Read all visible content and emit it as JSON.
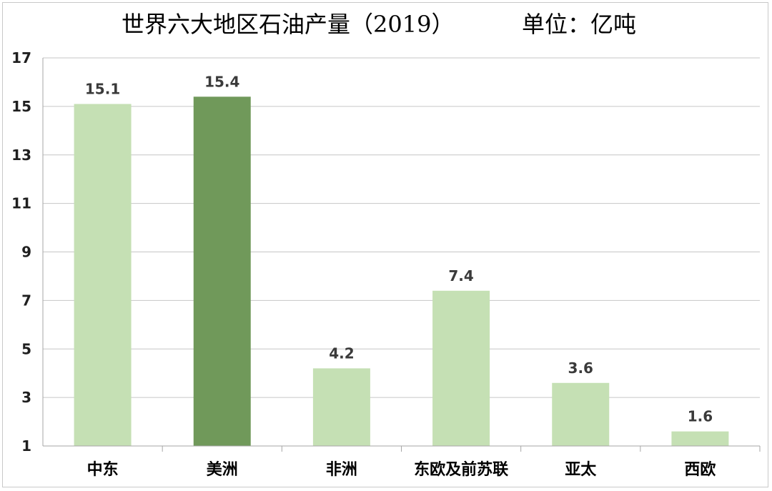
{
  "chart_data": {
    "type": "bar",
    "title": "世界六大地区石油产量（2019）",
    "unit": "单位：亿吨",
    "categories": [
      "中东",
      "美洲",
      "非洲",
      "东欧及前苏联",
      "亚太",
      "西欧"
    ],
    "values": [
      15.1,
      15.4,
      4.2,
      7.4,
      3.6,
      1.6
    ],
    "value_labels": [
      "15.1",
      "15.4",
      "4.2",
      "7.4",
      "3.6",
      "1.6"
    ],
    "xlabel": "",
    "ylabel": "",
    "ylim": [
      1,
      17
    ],
    "yticks": [
      1,
      3,
      5,
      7,
      9,
      11,
      13,
      15,
      17
    ],
    "grid": true,
    "colors": {
      "bar": "#c5e0b4",
      "highlight": "#70995a",
      "grid": "#c6c6c6",
      "axis": "#a6a6a6"
    },
    "highlight_index": 1
  }
}
